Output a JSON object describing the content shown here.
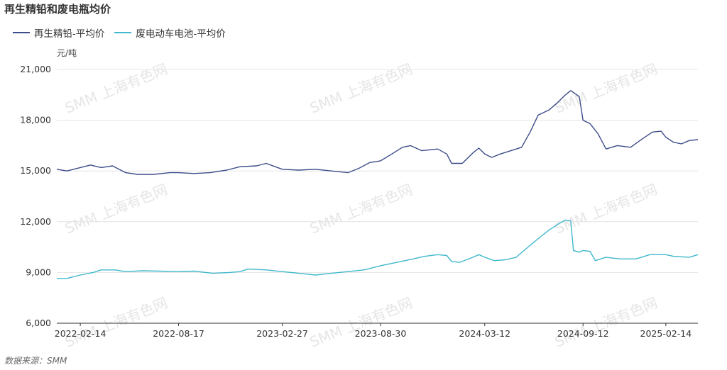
{
  "title": "再生精铅和废电瓶均价",
  "unit": "元/吨",
  "source": "数据来源：SMM",
  "watermark": "SMM 上海有色网",
  "colors": {
    "lead": "#3d4c88",
    "battery": "#3fb8cc",
    "grid": "#e4e4e4",
    "axis": "#333333"
  },
  "chart_data": {
    "type": "line",
    "title": "再生精铅和废电瓶均价",
    "ylabel": "元/吨",
    "ylim": [
      6000,
      21000
    ],
    "yticks": [
      6000,
      9000,
      12000,
      15000,
      18000,
      21000
    ],
    "ytick_labels": [
      "6,000",
      "9,000",
      "12,000",
      "15,000",
      "18,000",
      "21,000"
    ],
    "xlim": [
      "2022-01-01",
      "2025-04-15"
    ],
    "xticks": [
      "2022-02-14",
      "2022-08-17",
      "2023-02-27",
      "2023-08-30",
      "2024-03-12",
      "2024-09-12",
      "2025-02-14"
    ],
    "grid": "horizontal",
    "legend_position": "top-left",
    "series": [
      {
        "name": "再生精铅-平均价",
        "color": "#3d4c88",
        "points": [
          [
            "2022-01-01",
            15100
          ],
          [
            "2022-01-20",
            15000
          ],
          [
            "2022-02-14",
            15200
          ],
          [
            "2022-03-05",
            15350
          ],
          [
            "2022-03-25",
            15200
          ],
          [
            "2022-04-15",
            15300
          ],
          [
            "2022-05-10",
            14900
          ],
          [
            "2022-06-01",
            14800
          ],
          [
            "2022-07-01",
            14800
          ],
          [
            "2022-08-01",
            14900
          ],
          [
            "2022-08-17",
            14900
          ],
          [
            "2022-09-15",
            14850
          ],
          [
            "2022-10-15",
            14900
          ],
          [
            "2022-11-15",
            15050
          ],
          [
            "2022-12-10",
            15250
          ],
          [
            "2023-01-10",
            15300
          ],
          [
            "2023-01-28",
            15450
          ],
          [
            "2023-02-27",
            15100
          ],
          [
            "2023-03-30",
            15050
          ],
          [
            "2023-04-30",
            15100
          ],
          [
            "2023-05-30",
            15000
          ],
          [
            "2023-06-30",
            14900
          ],
          [
            "2023-07-20",
            15150
          ],
          [
            "2023-08-10",
            15500
          ],
          [
            "2023-08-30",
            15600
          ],
          [
            "2023-09-20",
            16000
          ],
          [
            "2023-10-10",
            16400
          ],
          [
            "2023-10-25",
            16500
          ],
          [
            "2023-11-15",
            16200
          ],
          [
            "2023-12-15",
            16300
          ],
          [
            "2024-01-01",
            16000
          ],
          [
            "2024-01-10",
            15450
          ],
          [
            "2024-01-30",
            15450
          ],
          [
            "2024-02-20",
            16100
          ],
          [
            "2024-03-01",
            16350
          ],
          [
            "2024-03-12",
            16000
          ],
          [
            "2024-03-25",
            15800
          ],
          [
            "2024-04-10",
            16000
          ],
          [
            "2024-04-30",
            16200
          ],
          [
            "2024-05-20",
            16400
          ],
          [
            "2024-06-05",
            17300
          ],
          [
            "2024-06-20",
            18300
          ],
          [
            "2024-07-10",
            18600
          ],
          [
            "2024-07-25",
            19000
          ],
          [
            "2024-08-10",
            19500
          ],
          [
            "2024-08-20",
            19750
          ],
          [
            "2024-09-05",
            19400
          ],
          [
            "2024-09-12",
            18000
          ],
          [
            "2024-09-25",
            17800
          ],
          [
            "2024-10-10",
            17200
          ],
          [
            "2024-10-25",
            16300
          ],
          [
            "2024-11-15",
            16500
          ],
          [
            "2024-12-10",
            16400
          ],
          [
            "2025-01-01",
            16900
          ],
          [
            "2025-01-20",
            17300
          ],
          [
            "2025-02-05",
            17350
          ],
          [
            "2025-02-14",
            17000
          ],
          [
            "2025-02-28",
            16700
          ],
          [
            "2025-03-15",
            16600
          ],
          [
            "2025-03-30",
            16800
          ],
          [
            "2025-04-15",
            16850
          ]
        ]
      },
      {
        "name": "废电动车电池-平均价",
        "color": "#3fb8cc",
        "points": [
          [
            "2022-01-01",
            8650
          ],
          [
            "2022-01-20",
            8650
          ],
          [
            "2022-02-14",
            8850
          ],
          [
            "2022-03-10",
            9000
          ],
          [
            "2022-03-25",
            9150
          ],
          [
            "2022-04-20",
            9150
          ],
          [
            "2022-05-10",
            9050
          ],
          [
            "2022-06-10",
            9100
          ],
          [
            "2022-07-10",
            9080
          ],
          [
            "2022-08-17",
            9050
          ],
          [
            "2022-09-15",
            9080
          ],
          [
            "2022-10-20",
            8950
          ],
          [
            "2022-11-20",
            9000
          ],
          [
            "2022-12-10",
            9050
          ],
          [
            "2022-12-25",
            9200
          ],
          [
            "2023-01-28",
            9150
          ],
          [
            "2023-02-27",
            9050
          ],
          [
            "2023-03-30",
            8950
          ],
          [
            "2023-04-30",
            8850
          ],
          [
            "2023-05-30",
            8950
          ],
          [
            "2023-06-30",
            9050
          ],
          [
            "2023-07-30",
            9150
          ],
          [
            "2023-08-30",
            9400
          ],
          [
            "2023-09-30",
            9600
          ],
          [
            "2023-10-30",
            9800
          ],
          [
            "2023-11-20",
            9950
          ],
          [
            "2023-12-15",
            10050
          ],
          [
            "2024-01-01",
            10000
          ],
          [
            "2024-01-10",
            9650
          ],
          [
            "2024-01-25",
            9600
          ],
          [
            "2024-02-15",
            9850
          ],
          [
            "2024-03-01",
            10050
          ],
          [
            "2024-03-12",
            9900
          ],
          [
            "2024-03-30",
            9700
          ],
          [
            "2024-04-20",
            9750
          ],
          [
            "2024-05-10",
            9900
          ],
          [
            "2024-06-01",
            10500
          ],
          [
            "2024-06-20",
            11000
          ],
          [
            "2024-07-10",
            11500
          ],
          [
            "2024-07-30",
            11900
          ],
          [
            "2024-08-10",
            12100
          ],
          [
            "2024-08-20",
            12050
          ],
          [
            "2024-08-25",
            10300
          ],
          [
            "2024-09-05",
            10200
          ],
          [
            "2024-09-12",
            10300
          ],
          [
            "2024-09-25",
            10250
          ],
          [
            "2024-10-05",
            9700
          ],
          [
            "2024-10-25",
            9900
          ],
          [
            "2024-11-20",
            9800
          ],
          [
            "2024-12-20",
            9800
          ],
          [
            "2025-01-15",
            10050
          ],
          [
            "2025-02-14",
            10050
          ],
          [
            "2025-03-01",
            9950
          ],
          [
            "2025-03-30",
            9900
          ],
          [
            "2025-04-15",
            10050
          ]
        ]
      }
    ]
  }
}
